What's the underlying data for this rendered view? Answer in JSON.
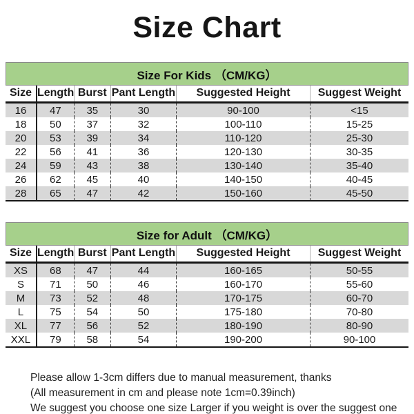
{
  "title": "Size Chart",
  "kids_table": {
    "section_title": "Size For Kids （CM/KG）",
    "columns": [
      "Size",
      "Length",
      "Burst",
      "Pant Length",
      "Suggested Height",
      "Suggest Weight"
    ],
    "rows": [
      [
        "16",
        "47",
        "35",
        "30",
        "90-100",
        "<15"
      ],
      [
        "18",
        "50",
        "37",
        "32",
        "100-110",
        "15-25"
      ],
      [
        "20",
        "53",
        "39",
        "34",
        "110-120",
        "25-30"
      ],
      [
        "22",
        "56",
        "41",
        "36",
        "120-130",
        "30-35"
      ],
      [
        "24",
        "59",
        "43",
        "38",
        "130-140",
        "35-40"
      ],
      [
        "26",
        "62",
        "45",
        "40",
        "140-150",
        "40-45"
      ],
      [
        "28",
        "65",
        "47",
        "42",
        "150-160",
        "45-50"
      ]
    ]
  },
  "adult_table": {
    "section_title": "Size for Adult （CM/KG）",
    "columns": [
      "Size",
      "Length",
      "Burst",
      "Pant Length",
      "Suggested Height",
      "Suggest Weight"
    ],
    "rows": [
      [
        "XS",
        "68",
        "47",
        "44",
        "160-165",
        "50-55"
      ],
      [
        "S",
        "71",
        "50",
        "46",
        "160-170",
        "55-60"
      ],
      [
        "M",
        "73",
        "52",
        "48",
        "170-175",
        "60-70"
      ],
      [
        "L",
        "75",
        "54",
        "50",
        "175-180",
        "70-80"
      ],
      [
        "XL",
        "77",
        "56",
        "52",
        "180-190",
        "80-90"
      ],
      [
        "XXL",
        "79",
        "58",
        "54",
        "190-200",
        "90-100"
      ]
    ]
  },
  "notes": [
    "Please allow 1-3cm differs due to manual measurement, thanks",
    "(All measurement in cm and please note 1cm=0.39inch)",
    "We suggest you choose one size Larger if you weight is over the suggest one"
  ],
  "colors": {
    "section_header_bg": "#a6d08b",
    "row_alt_bg": "#d8d8d8",
    "text": "#1a1a1a"
  }
}
